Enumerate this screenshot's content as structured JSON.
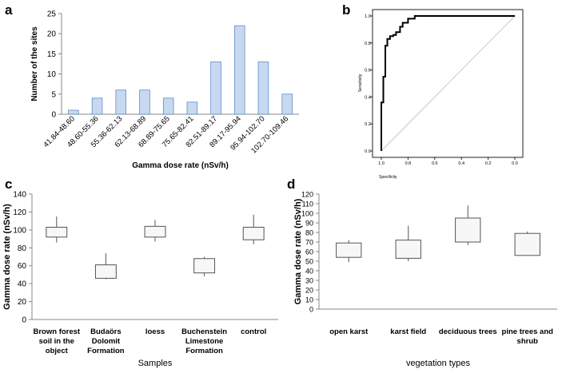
{
  "chart_data": [
    {
      "panel": "a",
      "type": "bar",
      "title": "",
      "xlabel": "Gamma dose rate (nSv/h)",
      "ylabel": "Number of the sites",
      "categories": [
        "41.84-48.60",
        "48.60-55.36",
        "55.36-62.13",
        "62.13-68.89",
        "68.89-75.65",
        "75.65-82.41",
        "82.51-89.17",
        "89.17-95.94",
        "95.94-102.70",
        "102.70-109.46"
      ],
      "values": [
        1,
        4,
        6,
        6,
        4,
        3,
        13,
        22,
        13,
        5
      ],
      "ylim": [
        0,
        25
      ],
      "yticks": [
        "0",
        "5",
        "10",
        "15",
        "20",
        "25"
      ],
      "color": "#c6d9f1"
    },
    {
      "panel": "b",
      "type": "line",
      "title": "",
      "xlabel": "Specificity",
      "ylabel": "Sensitivity",
      "xlim": [
        1.0,
        0.0
      ],
      "ylim": [
        0.0,
        1.0
      ],
      "xticks": [
        "1.0",
        "0.8",
        "0.6",
        "0.4",
        "0.2",
        "0.0"
      ],
      "yticks": [
        "0.0",
        "0.2",
        "0.4",
        "0.6",
        "0.8",
        "1.0"
      ],
      "series": [
        {
          "name": "ROC",
          "x": [
            1.0,
            1.0,
            0.985,
            0.985,
            0.97,
            0.97,
            0.955,
            0.955,
            0.935,
            0.935,
            0.91,
            0.91,
            0.89,
            0.89,
            0.86,
            0.86,
            0.84,
            0.84,
            0.8,
            0.8,
            0.75,
            0.75,
            0.0
          ],
          "y": [
            0.0,
            0.36,
            0.36,
            0.55,
            0.55,
            0.78,
            0.78,
            0.83,
            0.83,
            0.85,
            0.85,
            0.86,
            0.86,
            0.88,
            0.88,
            0.92,
            0.92,
            0.95,
            0.95,
            0.98,
            0.98,
            1.0,
            1.0
          ]
        },
        {
          "name": "reference",
          "x": [
            1.0,
            0.0
          ],
          "y": [
            0.0,
            1.0
          ]
        }
      ]
    },
    {
      "panel": "c",
      "type": "box",
      "xlabel": "Samples",
      "ylabel": "Gamma dose rate (nSv/h)",
      "ylim": [
        0,
        140
      ],
      "yticks": [
        "0",
        "20",
        "40",
        "60",
        "80",
        "100",
        "120",
        "140"
      ],
      "categories": [
        [
          "Brown forest",
          "soil in the",
          "object"
        ],
        [
          "Budaörs",
          "Dolomit",
          "Formation"
        ],
        [
          "loess"
        ],
        [
          "Buchenstein",
          "Limestone",
          "Formation"
        ],
        [
          "control"
        ]
      ],
      "boxes": [
        {
          "min": 86,
          "q1": 92,
          "q3": 103,
          "max": 115
        },
        {
          "min": 45,
          "q1": 46,
          "q3": 61,
          "max": 74
        },
        {
          "min": 87,
          "q1": 92,
          "q3": 104,
          "max": 111
        },
        {
          "min": 48,
          "q1": 52,
          "q3": 68,
          "max": 70
        },
        {
          "min": 84,
          "q1": 89,
          "q3": 103,
          "max": 117
        }
      ]
    },
    {
      "panel": "d",
      "type": "box",
      "xlabel": "vegetation types",
      "ylabel": "Gamma dose rate (nSv/h)",
      "ylim": [
        0,
        120
      ],
      "yticks": [
        "0",
        "10",
        "20",
        "30",
        "40",
        "50",
        "60",
        "70",
        "80",
        "90",
        "100",
        "110",
        "120"
      ],
      "categories": [
        [
          "open karst"
        ],
        [
          "karst field"
        ],
        [
          "deciduous trees"
        ],
        [
          "pine trees and",
          "shrub"
        ]
      ],
      "boxes": [
        {
          "min": 49,
          "q1": 54,
          "q3": 69,
          "max": 72
        },
        {
          "min": 50,
          "q1": 53,
          "q3": 72,
          "max": 87
        },
        {
          "min": 67,
          "q1": 70,
          "q3": 95,
          "max": 108
        },
        {
          "min": 56,
          "q1": 56,
          "q3": 79,
          "max": 81
        }
      ]
    }
  ]
}
